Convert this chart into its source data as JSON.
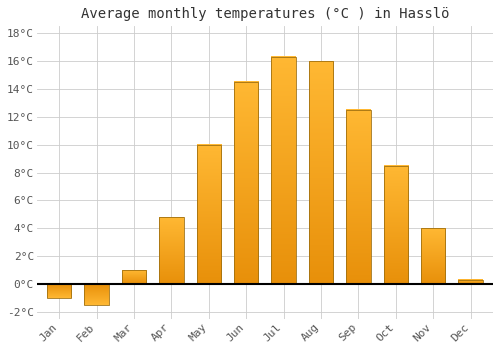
{
  "title": "Average monthly temperatures (°C ) in Hasslö",
  "months": [
    "Jan",
    "Feb",
    "Mar",
    "Apr",
    "May",
    "Jun",
    "Jul",
    "Aug",
    "Sep",
    "Oct",
    "Nov",
    "Dec"
  ],
  "values": [
    -1.0,
    -1.5,
    1.0,
    4.8,
    10.0,
    14.5,
    16.3,
    16.0,
    12.5,
    8.5,
    4.0,
    0.3
  ],
  "bar_color_top": "#FFB833",
  "bar_color_bottom": "#E8900A",
  "bar_edge_color": "#A07010",
  "background_color": "#FFFFFF",
  "grid_color": "#CCCCCC",
  "ylim": [
    -2.5,
    18.5
  ],
  "yticks": [
    -2,
    0,
    2,
    4,
    6,
    8,
    10,
    12,
    14,
    16,
    18
  ],
  "title_fontsize": 10,
  "tick_fontsize": 8,
  "zero_line_color": "#000000",
  "bar_width": 0.65
}
